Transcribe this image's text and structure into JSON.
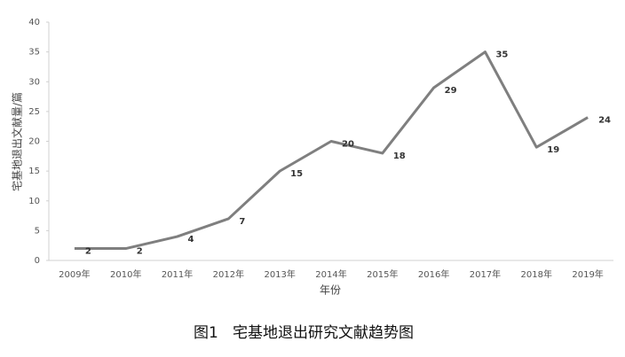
{
  "chart_data": {
    "type": "line",
    "figure_label": "图1",
    "title": "宅基地退出研究文献趋势图",
    "x_label": "年份",
    "y_label": "宅基地退出文献量/篇",
    "categories": [
      "2009年",
      "2010年",
      "2011年",
      "2012年",
      "2013年",
      "2014年",
      "2015年",
      "2016年",
      "2017年",
      "2018年",
      "2019年"
    ],
    "values": [
      2,
      2,
      4,
      7,
      15,
      20,
      18,
      29,
      35,
      19,
      24
    ],
    "color": "#7f7f7f",
    "ylim": [
      0,
      40
    ],
    "yticks": [
      0,
      5,
      10,
      15,
      20,
      25,
      30,
      35,
      40
    ],
    "grid": false
  }
}
